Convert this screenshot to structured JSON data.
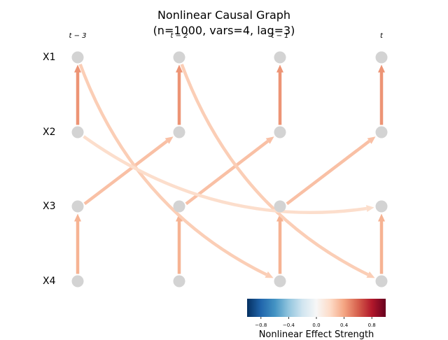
{
  "title": {
    "line1": "Nonlinear Causal Graph",
    "line2": "(n=1000, vars=4, lag=3)"
  },
  "time_labels": [
    "t − 3",
    "t − 2",
    "t − 1",
    "t"
  ],
  "variables": [
    "X1",
    "X2",
    "X3",
    "X4"
  ],
  "node_color": "#d3d3d3",
  "edges": [
    {
      "from": [
        "X2",
        0
      ],
      "to": [
        "X1",
        0
      ],
      "weight": 0.45
    },
    {
      "from": [
        "X2",
        1
      ],
      "to": [
        "X1",
        1
      ],
      "weight": 0.45
    },
    {
      "from": [
        "X2",
        2
      ],
      "to": [
        "X1",
        2
      ],
      "weight": 0.45
    },
    {
      "from": [
        "X2",
        3
      ],
      "to": [
        "X1",
        3
      ],
      "weight": 0.45
    },
    {
      "from": [
        "X4",
        0
      ],
      "to": [
        "X3",
        0
      ],
      "weight": 0.35
    },
    {
      "from": [
        "X4",
        1
      ],
      "to": [
        "X3",
        1
      ],
      "weight": 0.35
    },
    {
      "from": [
        "X4",
        2
      ],
      "to": [
        "X3",
        2
      ],
      "weight": 0.35
    },
    {
      "from": [
        "X4",
        3
      ],
      "to": [
        "X3",
        3
      ],
      "weight": 0.35
    },
    {
      "from": [
        "X3",
        0
      ],
      "to": [
        "X2",
        1
      ],
      "weight": 0.3
    },
    {
      "from": [
        "X3",
        1
      ],
      "to": [
        "X2",
        2
      ],
      "weight": 0.3
    },
    {
      "from": [
        "X3",
        2
      ],
      "to": [
        "X2",
        3
      ],
      "weight": 0.3
    },
    {
      "from": [
        "X1",
        0
      ],
      "to": [
        "X4",
        2
      ],
      "weight": 0.25
    },
    {
      "from": [
        "X1",
        1
      ],
      "to": [
        "X4",
        3
      ],
      "weight": 0.25
    },
    {
      "from": [
        "X2",
        0
      ],
      "to": [
        "X3",
        3
      ],
      "weight": 0.18
    }
  ],
  "colorbar": {
    "label": "Nonlinear Effect Strength",
    "min": -1,
    "max": 1,
    "ticks": [
      "−0.8",
      "−0.4",
      "0.0",
      "0.4",
      "0.8"
    ],
    "tick_values": [
      -0.8,
      -0.4,
      0.0,
      0.4,
      0.8
    ],
    "colormap": "RdBu_r",
    "stops": [
      "#053061",
      "#2166ac",
      "#4393c3",
      "#92c5de",
      "#d1e5f0",
      "#f7f7f7",
      "#fddbc7",
      "#f4a582",
      "#d6604d",
      "#b2182b",
      "#67001f"
    ]
  }
}
